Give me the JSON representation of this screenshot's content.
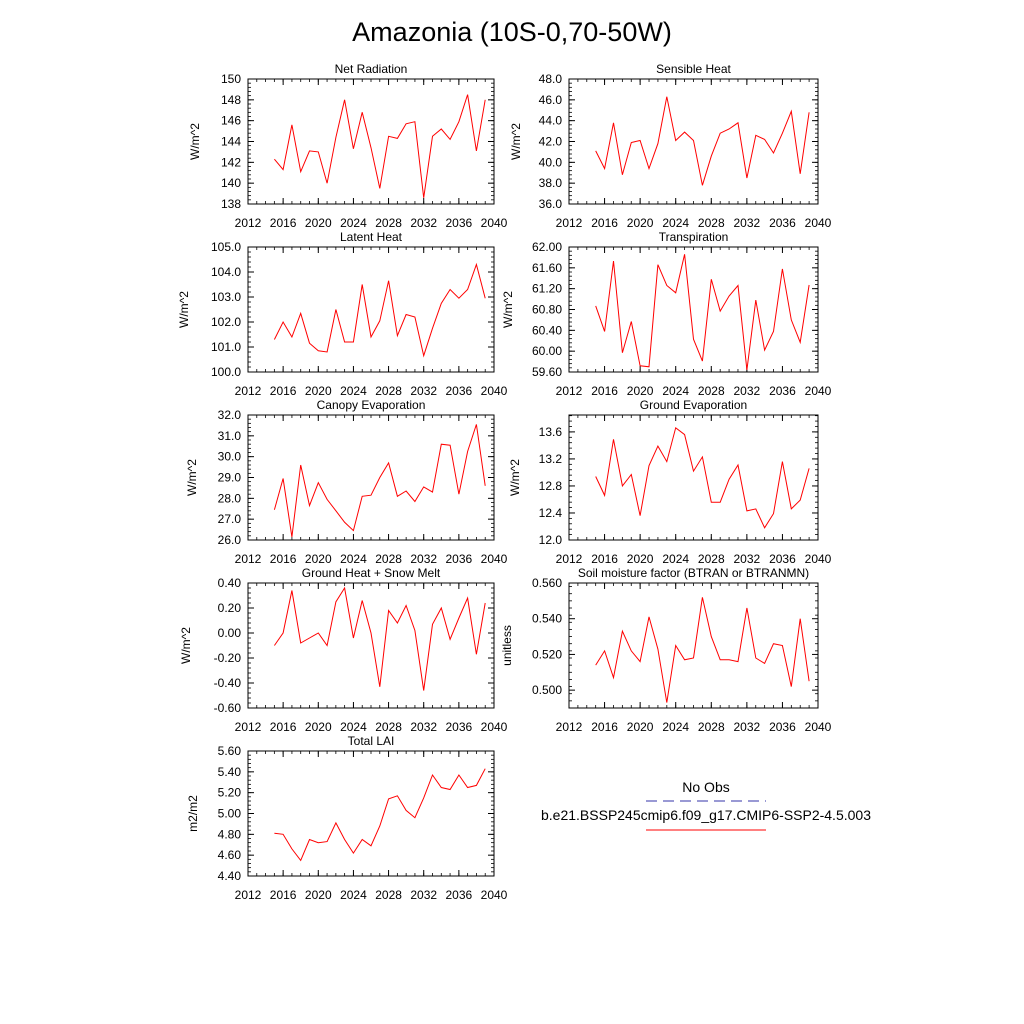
{
  "page": {
    "title": "Amazonia (10S-0,70-50W)"
  },
  "legend": {
    "obs_label": "No Obs",
    "case_label": "b.e21.BSSP245cmip6.f09_g17.CMIP6-SSP2-4.5.003",
    "obs_color": "#3333aa",
    "case_color": "#ff0000"
  },
  "chart_data": [
    {
      "type": "line",
      "title": "Net Radiation",
      "ylabel": "W/m^2",
      "xlim": [
        2012,
        2040
      ],
      "ylim": [
        138,
        150
      ],
      "xticks": [
        "2012",
        "2016",
        "2020",
        "2024",
        "2028",
        "2032",
        "2036",
        "2040"
      ],
      "yticks": [
        "138",
        "140",
        "142",
        "144",
        "146",
        "148",
        "150"
      ],
      "x": [
        2015,
        2016,
        2017,
        2018,
        2019,
        2020,
        2021,
        2022,
        2023,
        2024,
        2025,
        2026,
        2027,
        2028,
        2029,
        2030,
        2031,
        2032,
        2033,
        2034,
        2035,
        2036,
        2037,
        2038,
        2039
      ],
      "series": [
        {
          "name": "b.e21.BSSP245cmip6.f09_g17.CMIP6-SSP2-4.5.003",
          "values": [
            142.3,
            141.3,
            145.6,
            141.1,
            143.1,
            143.0,
            140.0,
            144.4,
            148.0,
            143.3,
            146.8,
            143.4,
            139.5,
            144.5,
            144.3,
            145.7,
            145.9,
            138.6,
            144.5,
            145.2,
            144.2,
            145.9,
            148.5,
            143.1,
            148.0
          ]
        }
      ]
    },
    {
      "type": "line",
      "title": "Sensible Heat",
      "ylabel": "W/m^2",
      "xlim": [
        2012,
        2040
      ],
      "ylim": [
        36,
        48
      ],
      "xticks": [
        "2012",
        "2016",
        "2020",
        "2024",
        "2028",
        "2032",
        "2036",
        "2040"
      ],
      "yticks": [
        "36.0",
        "38.0",
        "40.0",
        "42.0",
        "44.0",
        "46.0",
        "48.0"
      ],
      "x": [
        2015,
        2016,
        2017,
        2018,
        2019,
        2020,
        2021,
        2022,
        2023,
        2024,
        2025,
        2026,
        2027,
        2028,
        2029,
        2030,
        2031,
        2032,
        2033,
        2034,
        2035,
        2036,
        2037,
        2038,
        2039
      ],
      "series": [
        {
          "name": "b.e21.BSSP245cmip6.f09_g17.CMIP6-SSP2-4.5.003",
          "values": [
            41.1,
            39.4,
            43.8,
            38.8,
            41.9,
            42.1,
            39.4,
            41.8,
            46.3,
            42.1,
            42.9,
            42.1,
            37.8,
            40.6,
            42.8,
            43.2,
            43.8,
            38.5,
            42.6,
            42.2,
            40.9,
            42.8,
            44.9,
            38.9,
            44.8
          ]
        }
      ]
    },
    {
      "type": "line",
      "title": "Latent Heat",
      "ylabel": "W/m^2",
      "xlim": [
        2012,
        2040
      ],
      "ylim": [
        100,
        105
      ],
      "xticks": [
        "2012",
        "2016",
        "2020",
        "2024",
        "2028",
        "2032",
        "2036",
        "2040"
      ],
      "yticks": [
        "100.0",
        "101.0",
        "102.0",
        "103.0",
        "104.0",
        "105.0"
      ],
      "x": [
        2015,
        2016,
        2017,
        2018,
        2019,
        2020,
        2021,
        2022,
        2023,
        2024,
        2025,
        2026,
        2027,
        2028,
        2029,
        2030,
        2031,
        2032,
        2033,
        2034,
        2035,
        2036,
        2037,
        2038,
        2039
      ],
      "series": [
        {
          "name": "b.e21.BSSP245cmip6.f09_g17.CMIP6-SSP2-4.5.003",
          "values": [
            101.3,
            102.0,
            101.4,
            102.35,
            101.15,
            100.85,
            100.8,
            102.5,
            101.2,
            101.2,
            103.5,
            101.4,
            102.05,
            103.65,
            101.45,
            102.3,
            102.2,
            100.65,
            101.75,
            102.75,
            103.3,
            102.95,
            103.3,
            104.3,
            102.95
          ]
        }
      ]
    },
    {
      "type": "line",
      "title": "Transpiration",
      "ylabel": "W/m^2",
      "xlim": [
        2012,
        2040
      ],
      "ylim": [
        59.6,
        62.0
      ],
      "xticks": [
        "2012",
        "2016",
        "2020",
        "2024",
        "2028",
        "2032",
        "2036",
        "2040"
      ],
      "yticks": [
        "59.60",
        "60.00",
        "60.40",
        "60.80",
        "61.20",
        "61.60",
        "62.00"
      ],
      "x": [
        2015,
        2016,
        2017,
        2018,
        2019,
        2020,
        2021,
        2022,
        2023,
        2024,
        2025,
        2026,
        2027,
        2028,
        2029,
        2030,
        2031,
        2032,
        2033,
        2034,
        2035,
        2036,
        2037,
        2038,
        2039
      ],
      "series": [
        {
          "name": "b.e21.BSSP245cmip6.f09_g17.CMIP6-SSP2-4.5.003",
          "values": [
            60.87,
            60.38,
            61.73,
            59.97,
            60.57,
            59.72,
            59.7,
            61.66,
            61.26,
            61.12,
            61.86,
            60.23,
            59.81,
            61.38,
            60.77,
            61.06,
            61.26,
            59.64,
            60.98,
            60.02,
            60.38,
            61.58,
            60.6,
            60.17,
            61.27
          ]
        }
      ]
    },
    {
      "type": "line",
      "title": "Canopy Evaporation",
      "ylabel": "W/m^2",
      "xlim": [
        2012,
        2040
      ],
      "ylim": [
        26,
        32
      ],
      "xticks": [
        "2012",
        "2016",
        "2020",
        "2024",
        "2028",
        "2032",
        "2036",
        "2040"
      ],
      "yticks": [
        "26.0",
        "27.0",
        "28.0",
        "29.0",
        "30.0",
        "31.0",
        "32.0"
      ],
      "x": [
        2015,
        2016,
        2017,
        2018,
        2019,
        2020,
        2021,
        2022,
        2023,
        2024,
        2025,
        2026,
        2027,
        2028,
        2029,
        2030,
        2031,
        2032,
        2033,
        2034,
        2035,
        2036,
        2037,
        2038,
        2039
      ],
      "series": [
        {
          "name": "b.e21.BSSP245cmip6.f09_g17.CMIP6-SSP2-4.5.003",
          "values": [
            27.45,
            28.95,
            26.15,
            29.6,
            27.65,
            28.75,
            27.95,
            27.4,
            26.85,
            26.45,
            28.1,
            28.15,
            29.0,
            29.7,
            28.1,
            28.35,
            27.85,
            28.55,
            28.3,
            30.6,
            30.55,
            28.2,
            30.25,
            31.55,
            28.6
          ]
        }
      ]
    },
    {
      "type": "line",
      "title": "Ground Evaporation",
      "ylabel": "W/m^2",
      "xlim": [
        2012,
        2040
      ],
      "ylim": [
        12.0,
        13.85
      ],
      "xticks": [
        "2012",
        "2016",
        "2020",
        "2024",
        "2028",
        "2032",
        "2036",
        "2040"
      ],
      "yticks": [
        "12.0",
        "12.4",
        "12.8",
        "13.2",
        "13.6"
      ],
      "x": [
        2015,
        2016,
        2017,
        2018,
        2019,
        2020,
        2021,
        2022,
        2023,
        2024,
        2025,
        2026,
        2027,
        2028,
        2029,
        2030,
        2031,
        2032,
        2033,
        2034,
        2035,
        2036,
        2037,
        2038,
        2039
      ],
      "series": [
        {
          "name": "b.e21.BSSP245cmip6.f09_g17.CMIP6-SSP2-4.5.003",
          "values": [
            12.94,
            12.66,
            13.49,
            12.8,
            12.97,
            12.36,
            13.1,
            13.39,
            13.16,
            13.66,
            13.56,
            13.02,
            13.23,
            12.56,
            12.56,
            12.9,
            13.11,
            12.43,
            12.46,
            12.18,
            12.39,
            13.16,
            12.46,
            12.59,
            13.06
          ]
        }
      ]
    },
    {
      "type": "line",
      "title": "Ground Heat + Snow Melt",
      "ylabel": "W/m^2",
      "xlim": [
        2012,
        2040
      ],
      "ylim": [
        -0.6,
        0.4
      ],
      "xticks": [
        "2012",
        "2016",
        "2020",
        "2024",
        "2028",
        "2032",
        "2036",
        "2040"
      ],
      "yticks": [
        "-0.60",
        "-0.40",
        "-0.20",
        "0.00",
        "0.20",
        "0.40"
      ],
      "x": [
        2015,
        2016,
        2017,
        2018,
        2019,
        2020,
        2021,
        2022,
        2023,
        2024,
        2025,
        2026,
        2027,
        2028,
        2029,
        2030,
        2031,
        2032,
        2033,
        2034,
        2035,
        2036,
        2037,
        2038,
        2039
      ],
      "series": [
        {
          "name": "b.e21.BSSP245cmip6.f09_g17.CMIP6-SSP2-4.5.003",
          "values": [
            -0.1,
            0.0,
            0.34,
            -0.08,
            -0.04,
            0.0,
            -0.1,
            0.25,
            0.36,
            -0.04,
            0.26,
            0.0,
            -0.43,
            0.18,
            0.08,
            0.22,
            0.02,
            -0.46,
            0.07,
            0.2,
            -0.05,
            0.12,
            0.28,
            -0.17,
            0.24
          ]
        }
      ]
    },
    {
      "type": "line",
      "title": "Soil moisture factor (BTRAN or BTRANMN)",
      "ylabel": "unitless",
      "xlim": [
        2012,
        2040
      ],
      "ylim": [
        0.49,
        0.56
      ],
      "xticks": [
        "2012",
        "2016",
        "2020",
        "2024",
        "2028",
        "2032",
        "2036",
        "2040"
      ],
      "yticks": [
        "0.500",
        "0.520",
        "0.540",
        "0.560"
      ],
      "x": [
        2015,
        2016,
        2017,
        2018,
        2019,
        2020,
        2021,
        2022,
        2023,
        2024,
        2025,
        2026,
        2027,
        2028,
        2029,
        2030,
        2031,
        2032,
        2033,
        2034,
        2035,
        2036,
        2037,
        2038,
        2039
      ],
      "series": [
        {
          "name": "b.e21.BSSP245cmip6.f09_g17.CMIP6-SSP2-4.5.003",
          "values": [
            0.514,
            0.522,
            0.507,
            0.533,
            0.522,
            0.516,
            0.541,
            0.523,
            0.493,
            0.525,
            0.517,
            0.518,
            0.552,
            0.53,
            0.517,
            0.517,
            0.516,
            0.546,
            0.518,
            0.515,
            0.526,
            0.525,
            0.502,
            0.54,
            0.505
          ]
        }
      ]
    },
    {
      "type": "line",
      "title": "Total LAI",
      "ylabel": "m2/m2",
      "xlim": [
        2012,
        2040
      ],
      "ylim": [
        4.4,
        5.6
      ],
      "xticks": [
        "2012",
        "2016",
        "2020",
        "2024",
        "2028",
        "2032",
        "2036",
        "2040"
      ],
      "yticks": [
        "4.40",
        "4.60",
        "4.80",
        "5.00",
        "5.20",
        "5.40",
        "5.60"
      ],
      "x": [
        2015,
        2016,
        2017,
        2018,
        2019,
        2020,
        2021,
        2022,
        2023,
        2024,
        2025,
        2026,
        2027,
        2028,
        2029,
        2030,
        2031,
        2032,
        2033,
        2034,
        2035,
        2036,
        2037,
        2038,
        2039
      ],
      "series": [
        {
          "name": "b.e21.BSSP245cmip6.f09_g17.CMIP6-SSP2-4.5.003",
          "values": [
            4.81,
            4.8,
            4.66,
            4.55,
            4.75,
            4.72,
            4.73,
            4.91,
            4.75,
            4.62,
            4.75,
            4.69,
            4.88,
            5.14,
            5.17,
            5.03,
            4.96,
            5.15,
            5.37,
            5.25,
            5.23,
            5.37,
            5.25,
            5.27,
            5.43
          ]
        }
      ]
    }
  ]
}
